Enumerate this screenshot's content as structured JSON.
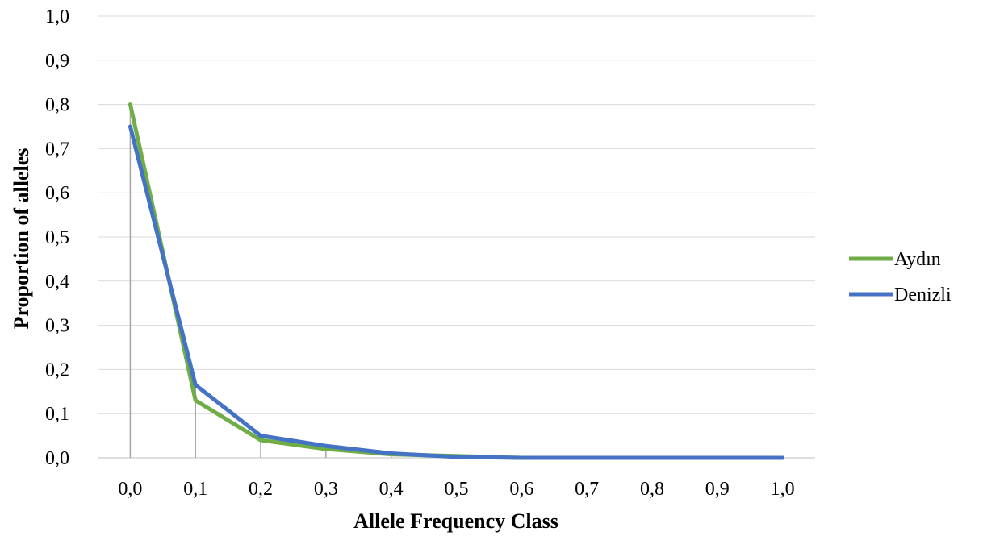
{
  "chart_data": {
    "type": "line",
    "title": "",
    "xlabel": "Allele Frequency Class",
    "ylabel": "Proportion of alleles",
    "categories": [
      "0,0",
      "0,1",
      "0,2",
      "0,3",
      "0,4",
      "0,5",
      "0,6",
      "0,7",
      "0,8",
      "0,9",
      "1,0"
    ],
    "x": [
      0.0,
      0.1,
      0.2,
      0.3,
      0.4,
      0.5,
      0.6,
      0.7,
      0.8,
      0.9,
      1.0
    ],
    "y_ticks": [
      "0,0",
      "0,1",
      "0,2",
      "0,3",
      "0,4",
      "0,5",
      "0,6",
      "0,7",
      "0,8",
      "0,9",
      "1,0"
    ],
    "ylim": [
      0,
      1
    ],
    "grid": "horizontal",
    "legend_position": "right",
    "series": [
      {
        "name": "Aydın",
        "color": "#70ad47",
        "values": [
          0.8,
          0.13,
          0.04,
          0.02,
          0.008,
          0.004,
          0.0,
          0.0,
          0.0,
          0.0,
          0.0
        ]
      },
      {
        "name": "Denizli",
        "color": "#4472c4",
        "values": [
          0.75,
          0.165,
          0.05,
          0.027,
          0.01,
          0.002,
          0.0,
          0.0,
          0.0,
          0.0,
          0.0
        ]
      }
    ],
    "gridline_color": "#d9d9d9",
    "drop_line_color": "#a6a6a6"
  }
}
